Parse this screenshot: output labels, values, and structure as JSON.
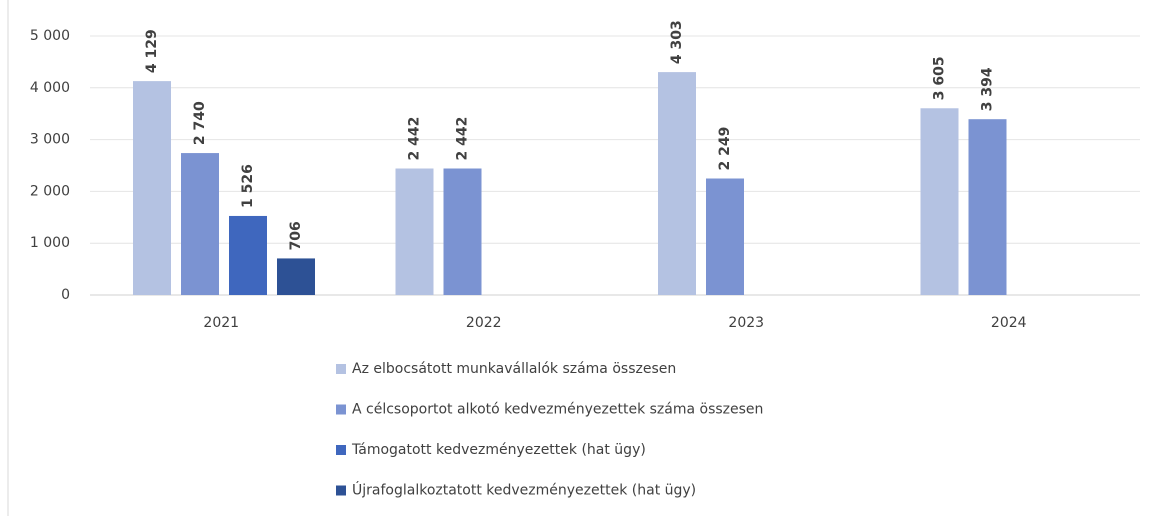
{
  "chart_data": {
    "type": "bar",
    "categories": [
      "2021",
      "2022",
      "2023",
      "2024"
    ],
    "series": [
      {
        "name": "Az elbocsátott munkavállalók száma összesen",
        "color": "#b4c2e2",
        "values": [
          4129,
          2442,
          4303,
          3605
        ],
        "value_labels": [
          "4 129",
          "2 442",
          "4 303",
          "3 605"
        ]
      },
      {
        "name": "A célcsoportot alkotó kedvezményezettek száma összesen",
        "color": "#7b93d2",
        "values": [
          2740,
          2442,
          2249,
          3394
        ],
        "value_labels": [
          "2 740",
          "2 442",
          "2 249",
          "3 394"
        ]
      },
      {
        "name": "Támogatott kedvezményezettek (hat ügy)",
        "color": "#3f67be",
        "values": [
          1526,
          null,
          null,
          null
        ],
        "value_labels": [
          "1 526",
          null,
          null,
          null
        ]
      },
      {
        "name": "Újrafoglalkoztatott kedvezményezettek (hat ügy)",
        "color": "#2d5195",
        "values": [
          706,
          null,
          null,
          null
        ],
        "value_labels": [
          "706",
          null,
          null,
          null
        ]
      }
    ],
    "ylim": [
      0,
      5000
    ],
    "yticks": [
      {
        "value": 0,
        "label": "0"
      },
      {
        "value": 1000,
        "label": "1 000"
      },
      {
        "value": 2000,
        "label": "2 000"
      },
      {
        "value": 3000,
        "label": "3 000"
      },
      {
        "value": 4000,
        "label": "4 000"
      },
      {
        "value": 5000,
        "label": "5 000"
      }
    ],
    "grid": true,
    "legend": "bottom"
  }
}
